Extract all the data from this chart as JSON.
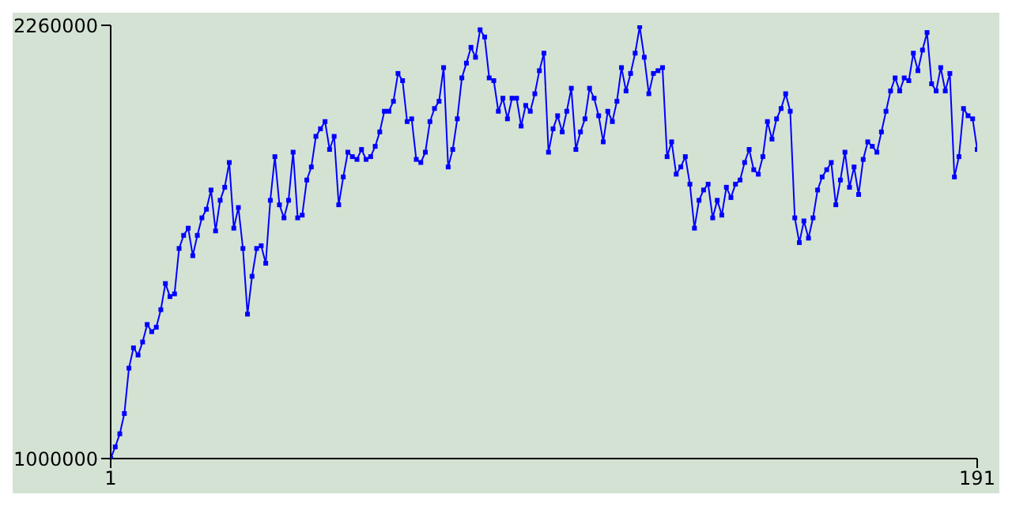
{
  "chart_data": {
    "type": "line",
    "x": [
      1,
      2,
      3,
      4,
      5,
      6,
      7,
      8,
      9,
      10,
      11,
      12,
      13,
      14,
      15,
      16,
      17,
      18,
      19,
      20,
      21,
      22,
      23,
      24,
      25,
      26,
      27,
      28,
      29,
      30,
      31,
      32,
      33,
      34,
      35,
      36,
      37,
      38,
      39,
      40,
      41,
      42,
      43,
      44,
      45,
      46,
      47,
      48,
      49,
      50,
      51,
      52,
      53,
      54,
      55,
      56,
      57,
      58,
      59,
      60,
      61,
      62,
      63,
      64,
      65,
      66,
      67,
      68,
      69,
      70,
      71,
      72,
      73,
      74,
      75,
      76,
      77,
      78,
      79,
      80,
      81,
      82,
      83,
      84,
      85,
      86,
      87,
      88,
      89,
      90,
      91,
      92,
      93,
      94,
      95,
      96,
      97,
      98,
      99,
      100,
      101,
      102,
      103,
      104,
      105,
      106,
      107,
      108,
      109,
      110,
      111,
      112,
      113,
      114,
      115,
      116,
      117,
      118,
      119,
      120,
      121,
      122,
      123,
      124,
      125,
      126,
      127,
      128,
      129,
      130,
      131,
      132,
      133,
      134,
      135,
      136,
      137,
      138,
      139,
      140,
      141,
      142,
      143,
      144,
      145,
      146,
      147,
      148,
      149,
      150,
      151,
      152,
      153,
      154,
      155,
      156,
      157,
      158,
      159,
      160,
      161,
      162,
      163,
      164,
      165,
      166,
      167,
      168,
      169,
      170,
      171,
      172,
      173,
      174,
      175,
      176,
      177,
      178,
      179,
      180,
      181,
      182,
      183,
      184,
      185,
      186,
      187,
      188,
      189,
      190,
      191
    ],
    "series": [
      {
        "color": "#0000ff",
        "values": [
          1000000,
          1034000,
          1072000,
          1131000,
          1263000,
          1322000,
          1301000,
          1339000,
          1390000,
          1369000,
          1382000,
          1433000,
          1509000,
          1471000,
          1479000,
          1611000,
          1649000,
          1670000,
          1590000,
          1649000,
          1700000,
          1725000,
          1781000,
          1662000,
          1751000,
          1789000,
          1861000,
          1670000,
          1730000,
          1611000,
          1420000,
          1530000,
          1611000,
          1619000,
          1568000,
          1751000,
          1878000,
          1738000,
          1700000,
          1751000,
          1891000,
          1700000,
          1708000,
          1810000,
          1848000,
          1937000,
          1959000,
          1980000,
          1899000,
          1937000,
          1738000,
          1819000,
          1891000,
          1878000,
          1870000,
          1899000,
          1870000,
          1878000,
          1908000,
          1950000,
          2010000,
          2010000,
          2039000,
          2120000,
          2099000,
          1980000,
          1988000,
          1870000,
          1861000,
          1891000,
          1980000,
          2018000,
          2039000,
          2137000,
          1848000,
          1899000,
          1988000,
          2107000,
          2150000,
          2196000,
          2167000,
          2247000,
          2226000,
          2107000,
          2099000,
          2010000,
          2048000,
          1988000,
          2048000,
          2048000,
          1967000,
          2027000,
          2010000,
          2061000,
          2128000,
          2179000,
          1891000,
          1959000,
          1997000,
          1950000,
          2010000,
          2077000,
          1899000,
          1950000,
          1988000,
          2077000,
          2048000,
          1997000,
          1921000,
          2010000,
          1980000,
          2039000,
          2137000,
          2069000,
          2120000,
          2179000,
          2256000,
          2167000,
          2061000,
          2120000,
          2128000,
          2137000,
          1878000,
          1921000,
          1827000,
          1848000,
          1878000,
          1798000,
          1670000,
          1751000,
          1781000,
          1798000,
          1700000,
          1751000,
          1708000,
          1789000,
          1759000,
          1798000,
          1810000,
          1861000,
          1899000,
          1840000,
          1827000,
          1878000,
          1980000,
          1929000,
          1988000,
          2018000,
          2061000,
          2010000,
          1700000,
          1628000,
          1691000,
          1641000,
          1700000,
          1781000,
          1819000,
          1840000,
          1861000,
          1738000,
          1810000,
          1891000,
          1789000,
          1848000,
          1768000,
          1870000,
          1921000,
          1908000,
          1891000,
          1950000,
          2010000,
          2069000,
          2107000,
          2069000,
          2107000,
          2099000,
          2179000,
          2128000,
          2188000,
          2239000,
          2090000,
          2069000,
          2137000,
          2069000,
          2120000,
          1819000,
          1878000,
          2018000,
          1997000,
          1988000,
          1899000
        ]
      }
    ],
    "xlim": [
      1,
      191
    ],
    "xticks": [
      1,
      191
    ],
    "ylim": [
      1000000,
      2260000
    ],
    "yticks": [
      1000000,
      2260000
    ],
    "marker": "square",
    "grid": false,
    "legend": false
  }
}
